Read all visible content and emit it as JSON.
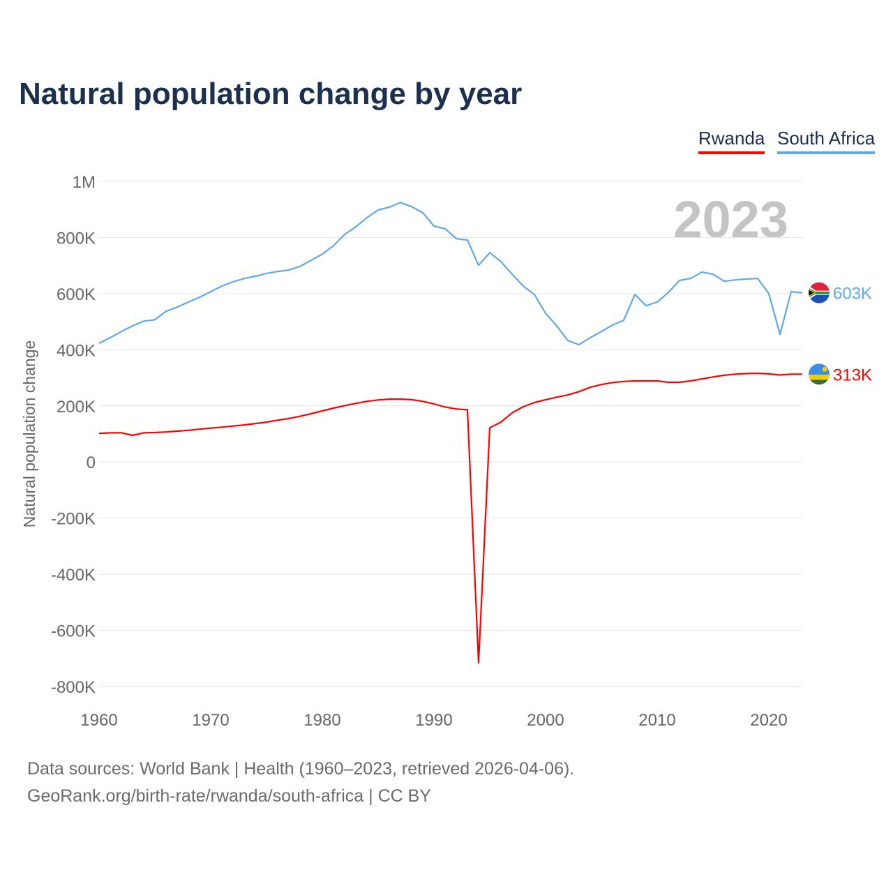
{
  "title": "Natural population change by year",
  "footer": {
    "sources": "Data sources: World Bank | Health (1960–2023, retrieved 2026-04-06).",
    "credit": "GeoRank.org/birth-rate/rwanda/south-africa | CC BY"
  },
  "chart_data": {
    "type": "line",
    "title": "Natural population change by year",
    "xlabel": "",
    "ylabel": "Natural population change",
    "year_watermark": "2023",
    "xlim": [
      1960,
      2023
    ],
    "ylim": [
      -800000,
      1000000
    ],
    "x_ticks": [
      1960,
      1970,
      1980,
      1990,
      2000,
      2010,
      2020
    ],
    "x_tick_labels": [
      "1960",
      "1970",
      "1980",
      "1990",
      "2000",
      "2010",
      "2020"
    ],
    "y_ticks": [
      1000000,
      800000,
      600000,
      400000,
      200000,
      0,
      -200000,
      -400000,
      -600000,
      -800000
    ],
    "y_tick_labels": [
      "1M",
      "800K",
      "600K",
      "400K",
      "200K",
      "0",
      "-200K",
      "-400K",
      "-600K",
      "-800K"
    ],
    "grid": true,
    "legend_position": "top-right",
    "x": [
      1960,
      1961,
      1962,
      1963,
      1964,
      1965,
      1966,
      1967,
      1968,
      1969,
      1970,
      1971,
      1972,
      1973,
      1974,
      1975,
      1976,
      1977,
      1978,
      1979,
      1980,
      1981,
      1982,
      1983,
      1984,
      1985,
      1986,
      1987,
      1988,
      1989,
      1990,
      1991,
      1992,
      1993,
      1994,
      1995,
      1996,
      1997,
      1998,
      1999,
      2000,
      2001,
      2002,
      2003,
      2004,
      2005,
      2006,
      2007,
      2008,
      2009,
      2010,
      2011,
      2012,
      2013,
      2014,
      2015,
      2016,
      2017,
      2018,
      2019,
      2020,
      2021,
      2022,
      2023
    ],
    "series": [
      {
        "name": "Rwanda",
        "color": "#ff0000",
        "end_label": "313K",
        "flag": "rwanda-flag",
        "values": [
          102,
          104,
          104,
          95,
          104,
          105,
          107,
          110,
          113,
          117,
          121,
          124,
          128,
          132,
          137,
          142,
          149,
          155,
          163,
          172,
          182,
          192,
          201,
          209,
          216,
          221,
          224,
          224,
          222,
          216,
          207,
          196,
          189,
          186,
          -716,
          122,
          142,
          175,
          197,
          212,
          222,
          231,
          239,
          251,
          266,
          276,
          283,
          287,
          289,
          289,
          289,
          284,
          284,
          289,
          296,
          303,
          309,
          313,
          315,
          316,
          314,
          310,
          313,
          313
        ]
      },
      {
        "name": "South Africa",
        "color": "#5ea8ef",
        "end_label": "603K",
        "flag": "south-africa-flag",
        "values": [
          423,
          443,
          465,
          485,
          502,
          507,
          537,
          552,
          570,
          587,
          607,
          627,
          642,
          654,
          662,
          672,
          679,
          684,
          697,
          719,
          741,
          771,
          811,
          838,
          871,
          898,
          908,
          925,
          910,
          888,
          841,
          831,
          796,
          791,
          701,
          746,
          714,
          669,
          627,
          597,
          530,
          485,
          433,
          418,
          443,
          465,
          488,
          505,
          597,
          557,
          570,
          604,
          647,
          654,
          677,
          669,
          644,
          649,
          652,
          654,
          600,
          455,
          607,
          603
        ]
      }
    ],
    "value_unit": "thousands"
  }
}
